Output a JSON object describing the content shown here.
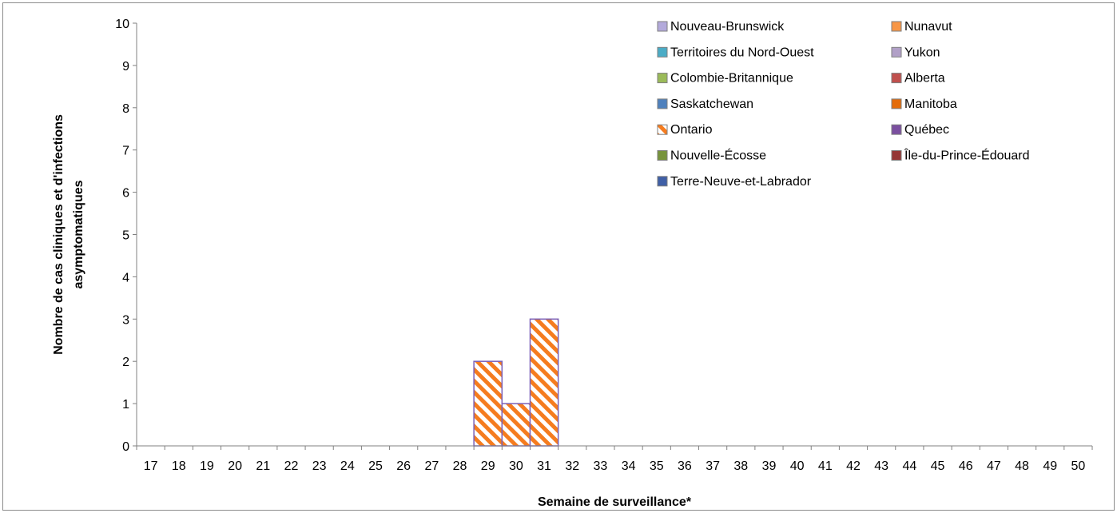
{
  "chart_data": {
    "type": "bar",
    "stacked": true,
    "categories": [
      "17",
      "18",
      "19",
      "20",
      "21",
      "22",
      "23",
      "24",
      "25",
      "26",
      "27",
      "28",
      "29",
      "30",
      "31",
      "32",
      "33",
      "34",
      "35",
      "36",
      "37",
      "38",
      "39",
      "40",
      "41",
      "42",
      "43",
      "44",
      "45",
      "46",
      "47",
      "48",
      "49",
      "50"
    ],
    "xlabel": "Semaine de surveillance*",
    "ylabel_lines": [
      "Nombre de cas cliniques et d'infections",
      "asymptomatiques"
    ],
    "ylim": [
      0,
      10
    ],
    "yticks": [
      0,
      1,
      2,
      3,
      4,
      5,
      6,
      7,
      8,
      9,
      10
    ],
    "grid": false,
    "legend_position": "top-right",
    "series": [
      {
        "name": "Nouveau-Brunswick",
        "color": "#b3aadb",
        "pattern": "solid",
        "values": [
          0,
          0,
          0,
          0,
          0,
          0,
          0,
          0,
          0,
          0,
          0,
          0,
          0,
          0,
          0,
          0,
          0,
          0,
          0,
          0,
          0,
          0,
          0,
          0,
          0,
          0,
          0,
          0,
          0,
          0,
          0,
          0,
          0,
          0
        ]
      },
      {
        "name": "Nunavut",
        "color": "#f79646",
        "pattern": "solid",
        "values": [
          0,
          0,
          0,
          0,
          0,
          0,
          0,
          0,
          0,
          0,
          0,
          0,
          0,
          0,
          0,
          0,
          0,
          0,
          0,
          0,
          0,
          0,
          0,
          0,
          0,
          0,
          0,
          0,
          0,
          0,
          0,
          0,
          0,
          0
        ]
      },
      {
        "name": "Territoires du Nord-Ouest",
        "color": "#4bacc6",
        "pattern": "solid",
        "values": [
          0,
          0,
          0,
          0,
          0,
          0,
          0,
          0,
          0,
          0,
          0,
          0,
          0,
          0,
          0,
          0,
          0,
          0,
          0,
          0,
          0,
          0,
          0,
          0,
          0,
          0,
          0,
          0,
          0,
          0,
          0,
          0,
          0,
          0
        ]
      },
      {
        "name": "Yukon",
        "color": "#b1a0c7",
        "pattern": "solid",
        "values": [
          0,
          0,
          0,
          0,
          0,
          0,
          0,
          0,
          0,
          0,
          0,
          0,
          0,
          0,
          0,
          0,
          0,
          0,
          0,
          0,
          0,
          0,
          0,
          0,
          0,
          0,
          0,
          0,
          0,
          0,
          0,
          0,
          0,
          0
        ]
      },
      {
        "name": "Colombie-Britannique",
        "color": "#9bbb59",
        "pattern": "solid",
        "values": [
          0,
          0,
          0,
          0,
          0,
          0,
          0,
          0,
          0,
          0,
          0,
          0,
          0,
          0,
          0,
          0,
          0,
          0,
          0,
          0,
          0,
          0,
          0,
          0,
          0,
          0,
          0,
          0,
          0,
          0,
          0,
          0,
          0,
          0
        ]
      },
      {
        "name": "Alberta",
        "color": "#c0504d",
        "pattern": "solid",
        "values": [
          0,
          0,
          0,
          0,
          0,
          0,
          0,
          0,
          0,
          0,
          0,
          0,
          0,
          0,
          0,
          0,
          0,
          0,
          0,
          0,
          0,
          0,
          0,
          0,
          0,
          0,
          0,
          0,
          0,
          0,
          0,
          0,
          0,
          0
        ]
      },
      {
        "name": "Saskatchewan",
        "color": "#4f81bd",
        "pattern": "solid",
        "values": [
          0,
          0,
          0,
          0,
          0,
          0,
          0,
          0,
          0,
          0,
          0,
          0,
          0,
          0,
          0,
          0,
          0,
          0,
          0,
          0,
          0,
          0,
          0,
          0,
          0,
          0,
          0,
          0,
          0,
          0,
          0,
          0,
          0,
          0
        ]
      },
      {
        "name": "Manitoba",
        "color": "#e46c0a",
        "pattern": "solid",
        "values": [
          0,
          0,
          0,
          0,
          0,
          0,
          0,
          0,
          0,
          0,
          0,
          0,
          0,
          0,
          0,
          0,
          0,
          0,
          0,
          0,
          0,
          0,
          0,
          0,
          0,
          0,
          0,
          0,
          0,
          0,
          0,
          0,
          0,
          0
        ]
      },
      {
        "name": "Ontario",
        "color": "#f57c1f",
        "pattern": "diagonal-stripes",
        "values": [
          0,
          0,
          0,
          0,
          0,
          0,
          0,
          0,
          0,
          0,
          0,
          0,
          2,
          1,
          3,
          0,
          0,
          0,
          0,
          0,
          0,
          0,
          0,
          0,
          0,
          0,
          0,
          0,
          0,
          0,
          0,
          0,
          0,
          0
        ]
      },
      {
        "name": "Québec",
        "color": "#7b4fa0",
        "pattern": "solid",
        "values": [
          0,
          0,
          0,
          0,
          0,
          0,
          0,
          0,
          0,
          0,
          0,
          0,
          0,
          0,
          0,
          0,
          0,
          0,
          0,
          0,
          0,
          0,
          0,
          0,
          0,
          0,
          0,
          0,
          0,
          0,
          0,
          0,
          0,
          0
        ]
      },
      {
        "name": "Nouvelle-Écosse",
        "color": "#77933c",
        "pattern": "solid",
        "values": [
          0,
          0,
          0,
          0,
          0,
          0,
          0,
          0,
          0,
          0,
          0,
          0,
          0,
          0,
          0,
          0,
          0,
          0,
          0,
          0,
          0,
          0,
          0,
          0,
          0,
          0,
          0,
          0,
          0,
          0,
          0,
          0,
          0,
          0
        ]
      },
      {
        "name": "Île-du-Prince-Édouard",
        "color": "#953735",
        "pattern": "solid",
        "values": [
          0,
          0,
          0,
          0,
          0,
          0,
          0,
          0,
          0,
          0,
          0,
          0,
          0,
          0,
          0,
          0,
          0,
          0,
          0,
          0,
          0,
          0,
          0,
          0,
          0,
          0,
          0,
          0,
          0,
          0,
          0,
          0,
          0,
          0
        ]
      },
      {
        "name": "Terre-Neuve-et-Labrador",
        "color": "#3f5fa6",
        "pattern": "solid",
        "values": [
          0,
          0,
          0,
          0,
          0,
          0,
          0,
          0,
          0,
          0,
          0,
          0,
          0,
          0,
          0,
          0,
          0,
          0,
          0,
          0,
          0,
          0,
          0,
          0,
          0,
          0,
          0,
          0,
          0,
          0,
          0,
          0,
          0,
          0
        ]
      }
    ],
    "bar_outline_color": "#7b61b8",
    "axis_color": "#808080"
  }
}
